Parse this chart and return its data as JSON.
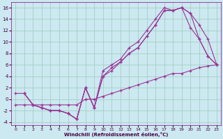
{
  "xlabel": "Windchill (Refroidissement éolien,°C)",
  "xlim": [
    -0.5,
    23.5
  ],
  "ylim": [
    -4.5,
    17
  ],
  "xticks": [
    0,
    1,
    2,
    3,
    4,
    5,
    6,
    7,
    8,
    9,
    10,
    11,
    12,
    13,
    14,
    15,
    16,
    17,
    18,
    19,
    20,
    21,
    22,
    23
  ],
  "yticks": [
    -4,
    -2,
    0,
    2,
    4,
    6,
    8,
    10,
    12,
    14,
    16
  ],
  "bg_color": "#cce8f0",
  "line_color": "#993399",
  "grid_color": "#99ccbb",
  "lines": [
    {
      "x": [
        1,
        2,
        3,
        4,
        5,
        6,
        7,
        8,
        9,
        10,
        11,
        12,
        13,
        14,
        15,
        16,
        17,
        18,
        19,
        20,
        21,
        22,
        23
      ],
      "y": [
        1,
        -1,
        -1.5,
        -2,
        -2,
        -2.5,
        -3.5,
        2,
        -1.5,
        5,
        6,
        7,
        9,
        10,
        12,
        14,
        16,
        15.5,
        16,
        15,
        13,
        10.5,
        6
      ]
    },
    {
      "x": [
        1,
        2,
        3,
        4,
        5,
        6,
        7,
        8,
        9,
        10,
        11,
        12,
        13,
        14,
        15,
        16,
        17,
        18,
        19,
        20,
        21,
        22,
        23
      ],
      "y": [
        1,
        -1,
        -1.5,
        -2,
        -2,
        -2.5,
        -3.5,
        2,
        -1.5,
        4,
        5.5,
        6.5,
        8,
        9,
        11,
        13,
        15.5,
        15.5,
        16,
        15,
        10.5,
        7.5,
        6
      ]
    },
    {
      "x": [
        0,
        1,
        2,
        3,
        4,
        5,
        6,
        7,
        8,
        9,
        10,
        11,
        12,
        13,
        14,
        15,
        16,
        17,
        18,
        19,
        20,
        21,
        22,
        23
      ],
      "y": [
        1,
        1,
        -1,
        -1.5,
        -2,
        -2,
        -2.5,
        -3.5,
        2,
        -1.5,
        4,
        5,
        6.5,
        8,
        9,
        11,
        13,
        15.5,
        15.5,
        16,
        12.5,
        10.5,
        7.5,
        6
      ]
    },
    {
      "x": [
        0,
        1,
        2,
        3,
        4,
        5,
        6,
        7,
        8,
        9,
        10,
        11,
        12,
        13,
        14,
        15,
        16,
        17,
        18,
        19,
        20,
        21,
        22,
        23
      ],
      "y": [
        -1,
        -1,
        -1,
        -1,
        -1,
        -1,
        -1,
        -1,
        0,
        0,
        0.5,
        1,
        1.5,
        2,
        2.5,
        3,
        3.5,
        4,
        4.5,
        4.5,
        5,
        5.5,
        5.8,
        6
      ]
    }
  ]
}
